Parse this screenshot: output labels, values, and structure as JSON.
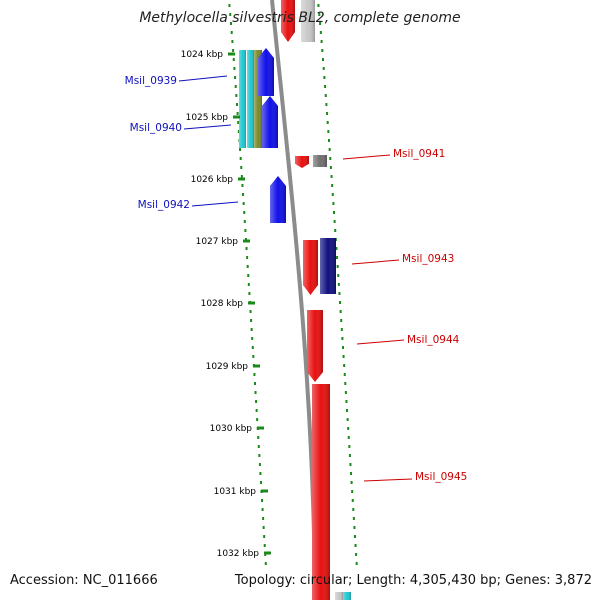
{
  "title": "Methylocella silvestris BL2, complete genome",
  "footer": {
    "accession": "Accession: NC_011666",
    "stats": "Topology: circular; Length: 4,305,430 bp; Genes: 3,872"
  },
  "colors": {
    "backbone": "#8c8c8c",
    "tick": "#1a8a1a",
    "tick_label": "#000000",
    "left_label": "#1010c0",
    "right_label": "#cc0000"
  },
  "ticks": [
    "1024 kbp",
    "1025 kbp",
    "1026 kbp",
    "1027 kbp",
    "1028 kbp",
    "1029 kbp",
    "1030 kbp",
    "1031 kbp",
    "1032 kbp"
  ],
  "gene_labels_left": [
    "Msil_0939",
    "Msil_0940",
    "Msil_0942"
  ],
  "gene_labels_right": [
    "Msil_0941",
    "Msil_0943",
    "Msil_0944",
    "Msil_0945"
  ],
  "gene_colors": {
    "blue": "#1010e8",
    "navy": "#101080",
    "red": "#e81010",
    "cyan": "#20c8d0",
    "olive": "#7a8a2a",
    "gray": "#707070",
    "light_gray": "#c8c8c8"
  }
}
